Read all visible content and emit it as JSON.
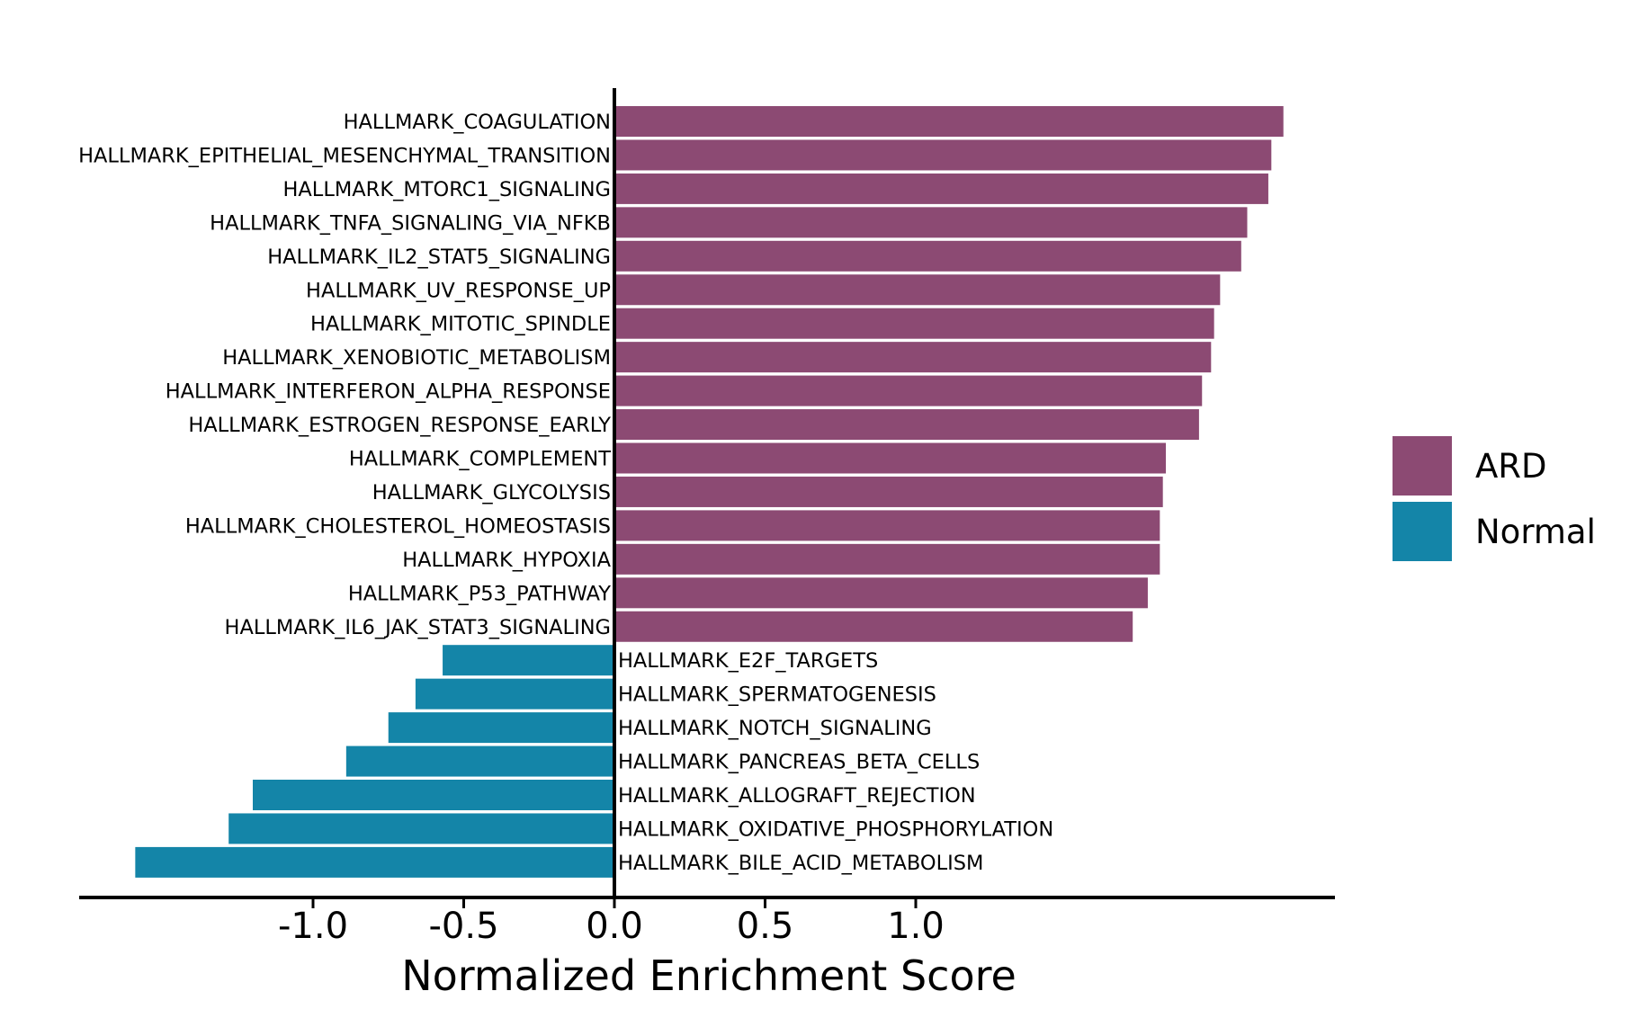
{
  "chart_data": {
    "type": "bar",
    "orientation": "horizontal",
    "title": "",
    "xlabel": "Normalized Enrichment Score",
    "ylabel": "",
    "xlim": [
      -1.77,
      2.42
    ],
    "xticks": [
      -1.0,
      -0.5,
      0.0,
      0.5,
      1.0
    ],
    "xtick_labels": [
      "-1.0",
      "-0.5",
      "0.0",
      "0.5",
      "1.0"
    ],
    "grid": false,
    "legend_position": "right",
    "legend": [
      {
        "name": "ARD",
        "color": "#8c4a73"
      },
      {
        "name": "Normal",
        "color": "#1485a8"
      }
    ],
    "series": [
      {
        "name": "ARD",
        "color": "#8c4a73"
      },
      {
        "name": "Normal",
        "color": "#1485a8"
      }
    ],
    "categories": [
      "HALLMARK_COAGULATION",
      "HALLMARK_EPITHELIAL_MESENCHYMAL_TRANSITION",
      "HALLMARK_MTORC1_SIGNALING",
      "HALLMARK_TNFA_SIGNALING_VIA_NFKB",
      "HALLMARK_IL2_STAT5_SIGNALING",
      "HALLMARK_UV_RESPONSE_UP",
      "HALLMARK_MITOTIC_SPINDLE",
      "HALLMARK_XENOBIOTIC_METABOLISM",
      "HALLMARK_INTERFERON_ALPHA_RESPONSE",
      "HALLMARK_ESTROGEN_RESPONSE_EARLY",
      "HALLMARK_COMPLEMENT",
      "HALLMARK_GLYCOLYSIS",
      "HALLMARK_CHOLESTEROL_HOMEOSTASIS",
      "HALLMARK_HYPOXIA",
      "HALLMARK_P53_PATHWAY",
      "HALLMARK_IL6_JAK_STAT3_SIGNALING",
      "HALLMARK_E2F_TARGETS",
      "HALLMARK_SPERMATOGENESIS",
      "HALLMARK_NOTCH_SIGNALING",
      "HALLMARK_PANCREAS_BETA_CELLS",
      "HALLMARK_ALLOGRAFT_REJECTION",
      "HALLMARK_OXIDATIVE_PHOSPHORYLATION",
      "HALLMARK_BILE_ACID_METABOLISM"
    ],
    "values": [
      2.22,
      2.18,
      2.17,
      2.1,
      2.08,
      2.01,
      1.99,
      1.98,
      1.95,
      1.94,
      1.83,
      1.82,
      1.81,
      1.81,
      1.77,
      1.72,
      -0.57,
      -0.66,
      -0.75,
      -0.89,
      -1.2,
      -1.28,
      -1.59
    ],
    "groups": [
      "ARD",
      "ARD",
      "ARD",
      "ARD",
      "ARD",
      "ARD",
      "ARD",
      "ARD",
      "ARD",
      "ARD",
      "ARD",
      "ARD",
      "ARD",
      "ARD",
      "ARD",
      "ARD",
      "Normal",
      "Normal",
      "Normal",
      "Normal",
      "Normal",
      "Normal",
      "Normal"
    ]
  }
}
